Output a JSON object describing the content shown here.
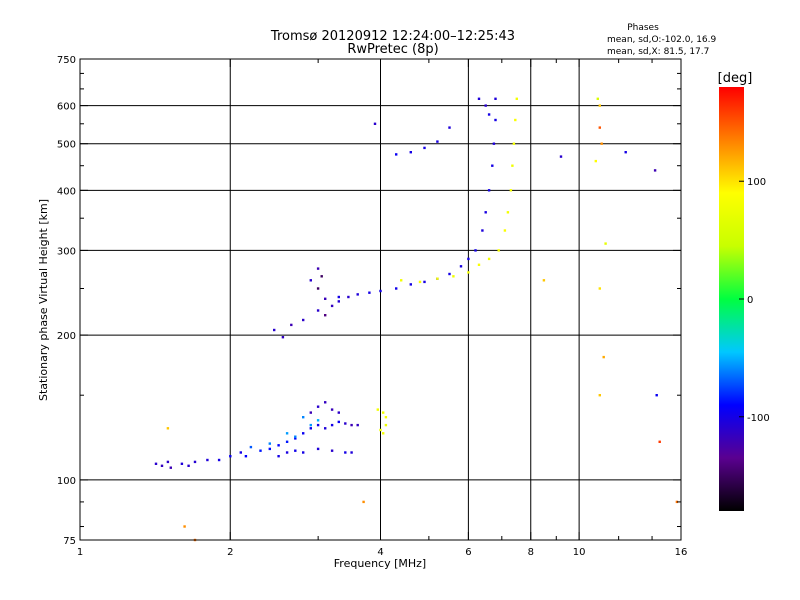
{
  "chart_data": {
    "type": "scatter",
    "title": "Tromsø 20120912 12:24:00–12:25:43",
    "subtitle": "RwPretec (8p)",
    "stats_title": "Phases",
    "stats_line_o": "mean, sd,O:-102.0, 16.9",
    "stats_line_x": "mean, sd,X:  81.5, 17.7",
    "xlabel": "Frequency [MHz]",
    "ylabel": "Stationary phase Virtual Height [km]",
    "x_scale": "log",
    "y_scale": "log",
    "xlim": [
      1,
      16
    ],
    "ylim": [
      75,
      750
    ],
    "x_ticks": [
      1,
      2,
      4,
      6,
      8,
      10,
      16
    ],
    "x_tick_labels": [
      "1",
      "2",
      "4",
      "6",
      "8",
      "10",
      "16"
    ],
    "x_minor_ticks": [
      3,
      5,
      7,
      9,
      12,
      14
    ],
    "y_ticks": [
      75,
      100,
      200,
      300,
      400,
      500,
      600,
      750
    ],
    "y_tick_labels": [
      "75",
      "100",
      "200",
      "300",
      "400",
      "500",
      "600",
      "750"
    ],
    "y_minor_ticks": [
      80,
      90,
      150,
      250,
      350,
      450,
      550,
      650,
      700
    ],
    "grid_x": [
      2,
      4,
      6,
      8,
      10
    ],
    "grid_y": [
      100,
      200,
      300,
      400,
      500,
      600
    ],
    "colorbar": {
      "label": "[deg]",
      "min": -180,
      "max": 180,
      "ticks": [
        100,
        0,
        -100
      ],
      "tick_labels": [
        "100",
        "0",
        "-100"
      ],
      "colors": [
        "#000000",
        "#5a0090",
        "#0000ff",
        "#00c8ff",
        "#00ff40",
        "#c8ff00",
        "#ffff00",
        "#ff8000",
        "#ff0000"
      ]
    },
    "series": [
      {
        "points": [
          [
            1.42,
            108,
            -110
          ],
          [
            1.46,
            107,
            -115
          ],
          [
            1.5,
            109,
            -112
          ],
          [
            1.52,
            106,
            -120
          ],
          [
            1.6,
            108,
            -105
          ],
          [
            1.65,
            107,
            -110
          ],
          [
            1.7,
            109,
            -108
          ],
          [
            1.8,
            110,
            -105
          ],
          [
            1.9,
            110,
            -100
          ],
          [
            2.0,
            112,
            -95
          ],
          [
            2.1,
            114,
            -100
          ],
          [
            2.15,
            112,
            -90
          ],
          [
            2.3,
            115,
            -85
          ],
          [
            2.4,
            116,
            -88
          ],
          [
            2.5,
            118,
            -90
          ],
          [
            2.6,
            120,
            -85
          ],
          [
            2.7,
            122,
            -92
          ],
          [
            2.8,
            125,
            -95
          ],
          [
            2.9,
            128,
            -98
          ],
          [
            3.0,
            130,
            -100
          ],
          [
            3.1,
            128,
            -105
          ],
          [
            3.2,
            130,
            -100
          ],
          [
            3.3,
            132,
            -95
          ],
          [
            3.4,
            131,
            -110
          ],
          [
            3.5,
            130,
            -120
          ],
          [
            3.6,
            130,
            -115
          ],
          [
            2.5,
            112,
            -100
          ],
          [
            2.6,
            114,
            -102
          ],
          [
            2.7,
            115,
            -98
          ],
          [
            2.8,
            114,
            -100
          ],
          [
            3.0,
            116,
            -105
          ],
          [
            3.2,
            115,
            -110
          ],
          [
            3.4,
            114,
            -100
          ],
          [
            3.5,
            114,
            -105
          ],
          [
            2.9,
            138,
            -120
          ],
          [
            3.0,
            142,
            -110
          ],
          [
            3.1,
            145,
            -115
          ],
          [
            3.2,
            140,
            -118
          ],
          [
            3.3,
            138,
            -112
          ],
          [
            2.8,
            135,
            -60
          ],
          [
            2.9,
            130,
            -55
          ],
          [
            3.0,
            133,
            -50
          ],
          [
            2.6,
            125,
            -55
          ],
          [
            2.7,
            123,
            -60
          ],
          [
            2.4,
            119,
            -60
          ],
          [
            2.2,
            117,
            -70
          ]
        ]
      },
      {
        "points": [
          [
            2.45,
            205,
            -110
          ],
          [
            2.55,
            198,
            -115
          ],
          [
            2.65,
            210,
            -120
          ],
          [
            2.8,
            215,
            -112
          ],
          [
            3.0,
            225,
            -110
          ],
          [
            3.1,
            238,
            -118
          ],
          [
            3.2,
            230,
            -115
          ],
          [
            3.3,
            235,
            -108
          ],
          [
            3.45,
            240,
            -110
          ],
          [
            3.6,
            243,
            -105
          ],
          [
            3.8,
            245,
            -100
          ],
          [
            4.0,
            247,
            -100
          ],
          [
            4.3,
            250,
            -98
          ],
          [
            4.6,
            255,
            -100
          ],
          [
            4.9,
            258,
            -102
          ],
          [
            5.2,
            262,
            -105
          ],
          [
            5.5,
            268,
            -100
          ],
          [
            5.8,
            278,
            -102
          ],
          [
            6.0,
            288,
            -100
          ],
          [
            6.2,
            300,
            -100
          ],
          [
            6.4,
            330,
            -104
          ],
          [
            6.5,
            360,
            -102
          ],
          [
            6.6,
            400,
            -100
          ],
          [
            6.7,
            450,
            -100
          ],
          [
            6.75,
            500,
            -105
          ],
          [
            6.8,
            560,
            -100
          ],
          [
            6.8,
            620,
            -105
          ],
          [
            3.0,
            250,
            -150
          ],
          [
            3.05,
            265,
            -150
          ],
          [
            3.1,
            220,
            -140
          ],
          [
            2.9,
            260,
            -110
          ],
          [
            3.0,
            275,
            -120
          ],
          [
            3.3,
            240,
            -100
          ],
          [
            4.3,
            475,
            -95
          ],
          [
            4.6,
            480,
            -100
          ],
          [
            4.9,
            490,
            -100
          ],
          [
            5.2,
            505,
            -102
          ],
          [
            5.5,
            540,
            -105
          ],
          [
            3.9,
            550,
            -110
          ],
          [
            6.3,
            620,
            -105
          ],
          [
            6.5,
            600,
            -110
          ],
          [
            6.6,
            575,
            -100
          ]
        ]
      },
      {
        "points": [
          [
            4.4,
            260,
            80
          ],
          [
            4.8,
            258,
            85
          ],
          [
            5.2,
            262,
            82
          ],
          [
            5.6,
            265,
            78
          ],
          [
            6.0,
            270,
            80
          ],
          [
            6.3,
            280,
            85
          ],
          [
            6.6,
            288,
            80
          ],
          [
            6.9,
            300,
            82
          ],
          [
            7.1,
            330,
            85
          ],
          [
            7.2,
            360,
            80
          ],
          [
            7.3,
            400,
            82
          ],
          [
            7.35,
            450,
            78
          ],
          [
            7.4,
            500,
            80
          ],
          [
            7.45,
            560,
            85
          ],
          [
            7.5,
            620,
            80
          ],
          [
            3.95,
            140,
            80
          ],
          [
            4.05,
            138,
            78
          ],
          [
            4.1,
            135,
            82
          ],
          [
            4.0,
            127,
            78
          ],
          [
            4.05,
            125,
            82
          ],
          [
            4.1,
            130,
            75
          ]
        ]
      },
      {
        "points": [
          [
            10.9,
            620,
            60
          ],
          [
            11.0,
            600,
            110
          ],
          [
            11.0,
            540,
            150
          ],
          [
            11.1,
            500,
            130
          ],
          [
            10.8,
            460,
            90
          ],
          [
            11.3,
            310,
            70
          ],
          [
            11.0,
            250,
            100
          ],
          [
            11.2,
            180,
            120
          ],
          [
            11.0,
            150,
            110
          ],
          [
            12.4,
            480,
            -100
          ],
          [
            14.2,
            440,
            -120
          ],
          [
            14.3,
            150,
            -95
          ],
          [
            14.5,
            120,
            160
          ],
          [
            15.7,
            90,
            140
          ],
          [
            1.62,
            80,
            130
          ],
          [
            1.7,
            75,
            140
          ],
          [
            1.5,
            128,
            110
          ],
          [
            3.7,
            90,
            130
          ],
          [
            8.5,
            260,
            110
          ],
          [
            9.2,
            470,
            -110
          ]
        ]
      }
    ]
  }
}
